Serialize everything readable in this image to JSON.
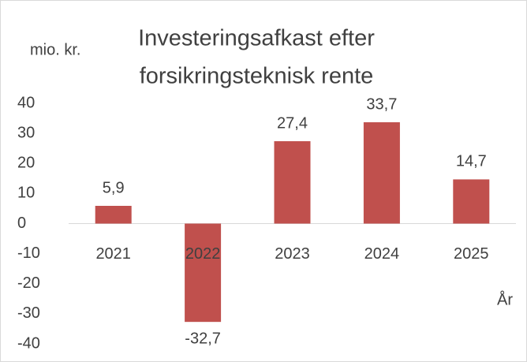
{
  "chart_data": {
    "type": "bar",
    "title": [
      "Investeringsafkast efter",
      "forsikringsteknisk rente"
    ],
    "y_label": "mio. kr.",
    "x_label": "År",
    "categories": [
      "2021",
      "2022",
      "2023",
      "2024",
      "2025"
    ],
    "values": [
      5.9,
      -32.7,
      27.4,
      33.7,
      14.7
    ],
    "value_labels": [
      "5,9",
      "-32,7",
      "27,4",
      "33,7",
      "14,7"
    ],
    "color": "#c0504d",
    "ylim": [
      -40,
      40
    ],
    "yticks": [
      -40,
      -30,
      -20,
      -10,
      0,
      10,
      20,
      30,
      40
    ]
  }
}
